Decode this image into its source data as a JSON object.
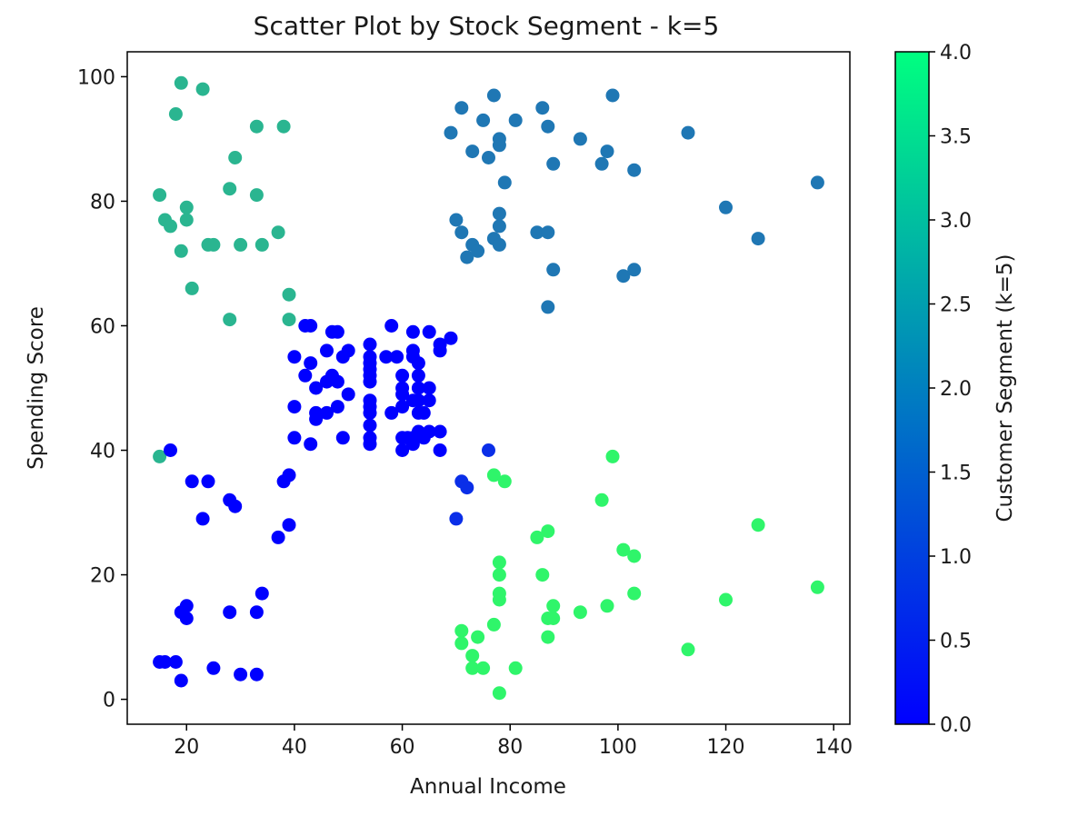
{
  "chart_data": {
    "type": "scatter",
    "title": "Scatter Plot by Stock Segment - k=5",
    "xlabel": "Annual Income",
    "ylabel": "Spending Score",
    "xlim": [
      9,
      143
    ],
    "ylim": [
      -4,
      104
    ],
    "x_ticks": [
      20,
      40,
      60,
      80,
      100,
      120,
      140
    ],
    "y_ticks": [
      0,
      20,
      40,
      60,
      80,
      100
    ],
    "grid": false,
    "colorbar": {
      "label": "Customer Segment (k=5)",
      "range": [
        0.0,
        4.0
      ],
      "ticks": [
        "0.0",
        "0.5",
        "1.0",
        "1.5",
        "2.0",
        "2.5",
        "3.0",
        "3.5",
        "4.0"
      ],
      "colormap": "winter",
      "color_low": "#0000ff",
      "color_high": "#00ff80"
    },
    "segment_colors": {
      "0": "#0000ff",
      "1": "#0a2ee8",
      "2": "#1f77b4",
      "3": "#2ab590",
      "4": "#2ff56a"
    },
    "series": [
      {
        "segment": 3,
        "points": [
          [
            15,
            39
          ],
          [
            15,
            81
          ],
          [
            16,
            77
          ],
          [
            17,
            76
          ],
          [
            18,
            94
          ],
          [
            19,
            72
          ],
          [
            19,
            99
          ],
          [
            20,
            77
          ],
          [
            20,
            79
          ],
          [
            21,
            66
          ],
          [
            23,
            98
          ],
          [
            24,
            73
          ],
          [
            25,
            73
          ],
          [
            28,
            61
          ],
          [
            28,
            82
          ],
          [
            29,
            87
          ],
          [
            30,
            73
          ],
          [
            33,
            81
          ],
          [
            33,
            92
          ],
          [
            34,
            73
          ],
          [
            37,
            75
          ],
          [
            38,
            92
          ],
          [
            39,
            61
          ],
          [
            39,
            65
          ]
        ]
      },
      {
        "segment": 2,
        "points": [
          [
            69,
            91
          ],
          [
            70,
            77
          ],
          [
            71,
            75
          ],
          [
            71,
            95
          ],
          [
            72,
            71
          ],
          [
            73,
            88
          ],
          [
            73,
            73
          ],
          [
            74,
            72
          ],
          [
            75,
            93
          ],
          [
            76,
            87
          ],
          [
            77,
            74
          ],
          [
            77,
            97
          ],
          [
            78,
            73
          ],
          [
            78,
            76
          ],
          [
            78,
            78
          ],
          [
            78,
            89
          ],
          [
            78,
            90
          ],
          [
            79,
            83
          ],
          [
            81,
            93
          ],
          [
            85,
            75
          ],
          [
            86,
            95
          ],
          [
            87,
            63
          ],
          [
            87,
            75
          ],
          [
            87,
            92
          ],
          [
            88,
            69
          ],
          [
            88,
            86
          ],
          [
            93,
            90
          ],
          [
            97,
            86
          ],
          [
            98,
            88
          ],
          [
            99,
            97
          ],
          [
            101,
            68
          ],
          [
            103,
            69
          ],
          [
            103,
            85
          ],
          [
            113,
            91
          ],
          [
            120,
            79
          ],
          [
            126,
            74
          ],
          [
            137,
            83
          ]
        ]
      },
      {
        "segment": 4,
        "points": [
          [
            71,
            11
          ],
          [
            71,
            9
          ],
          [
            73,
            5
          ],
          [
            73,
            7
          ],
          [
            74,
            10
          ],
          [
            75,
            5
          ],
          [
            77,
            12
          ],
          [
            77,
            36
          ],
          [
            78,
            1
          ],
          [
            78,
            16
          ],
          [
            78,
            17
          ],
          [
            78,
            20
          ],
          [
            78,
            22
          ],
          [
            79,
            35
          ],
          [
            81,
            5
          ],
          [
            85,
            26
          ],
          [
            86,
            20
          ],
          [
            87,
            10
          ],
          [
            87,
            13
          ],
          [
            87,
            27
          ],
          [
            88,
            13
          ],
          [
            88,
            15
          ],
          [
            93,
            14
          ],
          [
            97,
            32
          ],
          [
            98,
            15
          ],
          [
            99,
            39
          ],
          [
            101,
            24
          ],
          [
            103,
            17
          ],
          [
            103,
            23
          ],
          [
            113,
            8
          ],
          [
            120,
            16
          ],
          [
            126,
            28
          ],
          [
            137,
            18
          ]
        ]
      },
      {
        "segment": 1,
        "points": [
          [
            70,
            29
          ],
          [
            71,
            35
          ],
          [
            72,
            34
          ],
          [
            76,
            40
          ]
        ]
      },
      {
        "segment": 0,
        "points": [
          [
            15,
            6
          ],
          [
            16,
            6
          ],
          [
            17,
            40
          ],
          [
            18,
            6
          ],
          [
            19,
            3
          ],
          [
            19,
            14
          ],
          [
            20,
            13
          ],
          [
            20,
            15
          ],
          [
            21,
            35
          ],
          [
            23,
            29
          ],
          [
            24,
            35
          ],
          [
            25,
            5
          ],
          [
            28,
            14
          ],
          [
            28,
            32
          ],
          [
            29,
            31
          ],
          [
            30,
            4
          ],
          [
            33,
            4
          ],
          [
            33,
            14
          ],
          [
            34,
            17
          ],
          [
            37,
            26
          ],
          [
            38,
            35
          ],
          [
            39,
            28
          ],
          [
            39,
            36
          ],
          [
            40,
            42
          ],
          [
            40,
            47
          ],
          [
            40,
            55
          ],
          [
            42,
            52
          ],
          [
            42,
            60
          ],
          [
            43,
            41
          ],
          [
            43,
            54
          ],
          [
            43,
            60
          ],
          [
            44,
            45
          ],
          [
            44,
            46
          ],
          [
            44,
            50
          ],
          [
            46,
            46
          ],
          [
            46,
            51
          ],
          [
            46,
            56
          ],
          [
            47,
            52
          ],
          [
            47,
            59
          ],
          [
            48,
            47
          ],
          [
            48,
            51
          ],
          [
            48,
            59
          ],
          [
            49,
            42
          ],
          [
            49,
            55
          ],
          [
            50,
            49
          ],
          [
            50,
            56
          ],
          [
            54,
            41
          ],
          [
            54,
            42
          ],
          [
            54,
            44
          ],
          [
            54,
            46
          ],
          [
            54,
            47
          ],
          [
            54,
            48
          ],
          [
            54,
            51
          ],
          [
            54,
            52
          ],
          [
            54,
            53
          ],
          [
            54,
            54
          ],
          [
            54,
            55
          ],
          [
            54,
            57
          ],
          [
            57,
            55
          ],
          [
            58,
            46
          ],
          [
            58,
            60
          ],
          [
            59,
            55
          ],
          [
            60,
            40
          ],
          [
            60,
            42
          ],
          [
            60,
            47
          ],
          [
            60,
            49
          ],
          [
            60,
            50
          ],
          [
            60,
            52
          ],
          [
            61,
            42
          ],
          [
            62,
            41
          ],
          [
            62,
            42
          ],
          [
            62,
            48
          ],
          [
            62,
            55
          ],
          [
            62,
            56
          ],
          [
            62,
            59
          ],
          [
            63,
            43
          ],
          [
            63,
            46
          ],
          [
            63,
            48
          ],
          [
            63,
            50
          ],
          [
            63,
            52
          ],
          [
            63,
            54
          ],
          [
            64,
            42
          ],
          [
            64,
            46
          ],
          [
            65,
            43
          ],
          [
            65,
            48
          ],
          [
            65,
            50
          ],
          [
            65,
            59
          ],
          [
            67,
            40
          ],
          [
            67,
            43
          ],
          [
            67,
            56
          ],
          [
            67,
            57
          ],
          [
            69,
            58
          ]
        ]
      }
    ]
  }
}
